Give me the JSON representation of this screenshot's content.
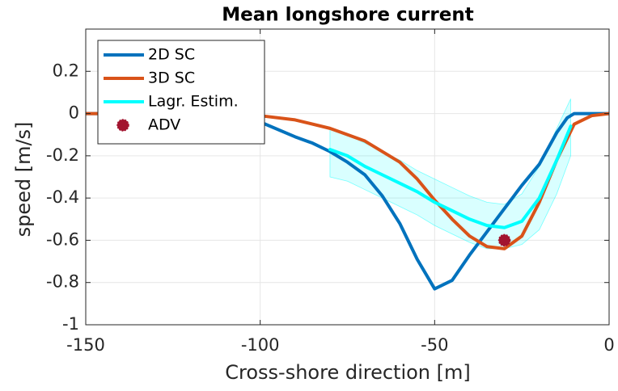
{
  "chart_data": {
    "type": "line",
    "title": "Mean longshore current",
    "xlabel": "Cross-shore direction [m]",
    "ylabel": "speed [m/s]",
    "xlim": [
      -150,
      0
    ],
    "ylim": [
      -1,
      0.4
    ],
    "xticks": [
      -150,
      -100,
      -50,
      0
    ],
    "yticks": [
      -1,
      -0.8,
      -0.6,
      -0.4,
      -0.2,
      0,
      0.2
    ],
    "grid": true,
    "legend": "upper left",
    "series": [
      {
        "name": "2D SC",
        "color": "#0072bd",
        "kind": "line",
        "x": [
          -150,
          -120,
          -110,
          -100,
          -90,
          -85,
          -80,
          -75,
          -70,
          -65,
          -60,
          -55,
          -50,
          -45,
          -40,
          -35,
          -30,
          -25,
          -20,
          -15,
          -12,
          -10,
          -5,
          0
        ],
        "values": [
          0,
          0,
          -0.01,
          -0.04,
          -0.11,
          -0.14,
          -0.18,
          -0.23,
          -0.29,
          -0.39,
          -0.52,
          -0.69,
          -0.83,
          -0.79,
          -0.67,
          -0.56,
          -0.45,
          -0.34,
          -0.24,
          -0.09,
          -0.02,
          0,
          0,
          0
        ]
      },
      {
        "name": "3D SC",
        "color": "#d95319",
        "kind": "line",
        "x": [
          -150,
          -110,
          -100,
          -90,
          -80,
          -70,
          -60,
          -55,
          -50,
          -45,
          -40,
          -35,
          -30,
          -25,
          -20,
          -15,
          -10,
          -5,
          0
        ],
        "values": [
          0,
          0,
          -0.01,
          -0.03,
          -0.07,
          -0.13,
          -0.23,
          -0.31,
          -0.41,
          -0.5,
          -0.58,
          -0.63,
          -0.64,
          -0.58,
          -0.42,
          -0.22,
          -0.05,
          -0.01,
          0
        ]
      },
      {
        "name": "Lagr. Estim.",
        "color": "#00ffff",
        "kind": "line",
        "x": [
          -80,
          -75,
          -70,
          -65,
          -60,
          -55,
          -50,
          -45,
          -40,
          -35,
          -30,
          -25,
          -20,
          -15,
          -11
        ],
        "values": [
          -0.17,
          -0.2,
          -0.25,
          -0.29,
          -0.33,
          -0.37,
          -0.42,
          -0.46,
          -0.5,
          -0.53,
          -0.54,
          -0.51,
          -0.4,
          -0.22,
          -0.06
        ],
        "upper": [
          -0.07,
          -0.1,
          -0.14,
          -0.18,
          -0.22,
          -0.27,
          -0.31,
          -0.35,
          -0.39,
          -0.42,
          -0.43,
          -0.38,
          -0.25,
          -0.07,
          0.07
        ],
        "lower": [
          -0.3,
          -0.32,
          -0.36,
          -0.4,
          -0.44,
          -0.48,
          -0.53,
          -0.57,
          -0.61,
          -0.64,
          -0.64,
          -0.62,
          -0.55,
          -0.38,
          -0.2
        ]
      },
      {
        "name": "ADV",
        "color": "#a2142f",
        "kind": "scatter",
        "x": [
          -30
        ],
        "values": [
          -0.6
        ]
      }
    ]
  }
}
